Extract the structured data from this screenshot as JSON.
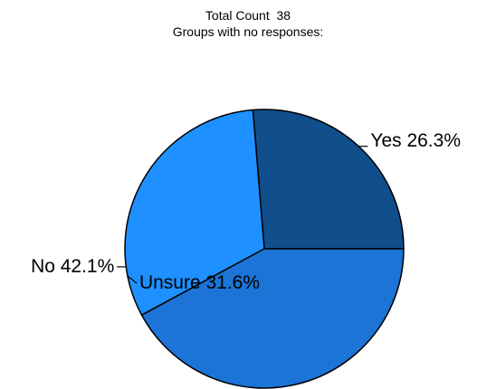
{
  "header": {
    "total_count": "Total Count  38",
    "no_responses": "Groups with no responses:"
  },
  "chart_data": {
    "type": "pie",
    "title": "",
    "slices": [
      {
        "label": "Yes",
        "percent": 26.3,
        "percent_text": "26.3%",
        "color": "#114e8c"
      },
      {
        "label": "Unsure",
        "percent": 31.6,
        "percent_text": "31.6%",
        "color": "#1e90ff"
      },
      {
        "label": "No",
        "percent": 42.1,
        "percent_text": "42.1%",
        "color": "#1b74d6"
      }
    ],
    "outline_color": "#000000"
  }
}
